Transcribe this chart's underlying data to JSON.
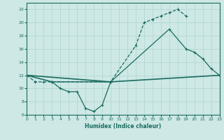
{
  "bg_color": "#cde8e5",
  "grid_color": "#b0d4d0",
  "line_color": "#1a6b5e",
  "xlabel": "Humidex (Indice chaleur)",
  "ylim": [
    6,
    23
  ],
  "xlim": [
    0,
    23
  ],
  "yticks": [
    6,
    8,
    10,
    12,
    14,
    16,
    18,
    20,
    22
  ],
  "xticks": [
    0,
    1,
    2,
    3,
    4,
    5,
    6,
    7,
    8,
    9,
    10,
    11,
    12,
    13,
    14,
    15,
    16,
    17,
    18,
    19,
    20,
    21,
    22,
    23
  ],
  "curve1_x": [
    0,
    1,
    2,
    3,
    10,
    13,
    14,
    15,
    16,
    17,
    18,
    19
  ],
  "curve1_y": [
    12,
    11,
    11,
    11,
    11,
    16.5,
    20,
    20.5,
    21,
    21.5,
    22,
    21
  ],
  "curve2_x": [
    0,
    3,
    10,
    17,
    19,
    20,
    21,
    22,
    23
  ],
  "curve2_y": [
    12,
    11,
    11,
    19,
    16,
    15.5,
    14.5,
    13,
    12
  ],
  "curve3_x": [
    0,
    10,
    23
  ],
  "curve3_y": [
    12,
    11,
    12
  ],
  "curve4_x": [
    0,
    3,
    4,
    5,
    6,
    7,
    8,
    9,
    10
  ],
  "curve4_y": [
    12,
    11,
    10,
    9.5,
    9.5,
    7,
    6.5,
    7.5,
    11
  ],
  "marker": "+"
}
